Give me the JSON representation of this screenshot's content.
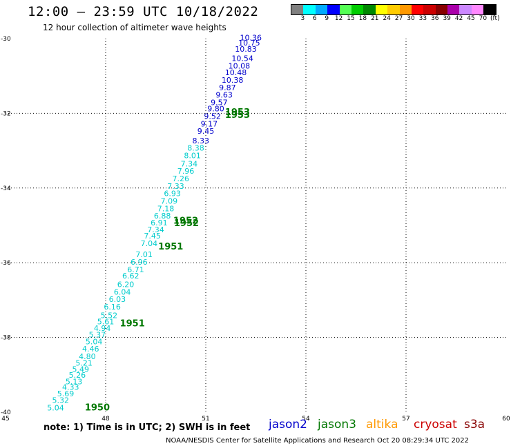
{
  "header": {
    "title": "12:00 – 23:59 UTC 10/18/2022",
    "subtitle": "12 hour collection of altimeter wave heights"
  },
  "colorbar": {
    "colors": [
      "#808080",
      "#00ffff",
      "#00aaff",
      "#0000ff",
      "#55ff55",
      "#00cc00",
      "#008800",
      "#ffff00",
      "#ffcc00",
      "#ff9900",
      "#ff0000",
      "#cc0000",
      "#880000",
      "#aa00aa",
      "#cc88ff",
      "#ff88ff",
      "#000000"
    ],
    "labels": [
      "3",
      "6",
      "9",
      "12",
      "15",
      "18",
      "21",
      "24",
      "27",
      "30",
      "33",
      "36",
      "39",
      "42",
      "45",
      "70",
      "(ft)"
    ]
  },
  "note": "note:  1) Time is in UTC;  2) SWH is in feet",
  "credit": "NOAA/NESDIS Center for Satellite Applications and Research     Oct 20 08:29:34 UTC 2022",
  "satellites": [
    {
      "name": "jason2",
      "color": "#0000cc"
    },
    {
      "name": "jason3",
      "color": "#007700"
    },
    {
      "name": "altika",
      "color": "#ff9900"
    },
    {
      "name": "cryosat",
      "color": "#cc0000"
    },
    {
      "name": "s3a",
      "color": "#880000"
    }
  ],
  "chart_data": {
    "type": "scatter",
    "title": "12:00 – 23:59 UTC 10/18/2022",
    "xlim": [
      45,
      60
    ],
    "ylim": [
      -40,
      -30
    ],
    "x_ticks": [
      "45",
      "48",
      "51",
      "54",
      "57",
      "60"
    ],
    "y_ticks": [
      "-30",
      "-32",
      "-34",
      "-36",
      "-38",
      "-40"
    ],
    "grid": true,
    "swh_points": [
      {
        "lon": 46.5,
        "lat": -39.95,
        "swh": "5.04",
        "color": "#00cccc"
      },
      {
        "lon": 46.65,
        "lat": -39.75,
        "swh": "5.32",
        "color": "#00cccc"
      },
      {
        "lon": 46.8,
        "lat": -39.58,
        "swh": "5.69",
        "color": "#00cccc"
      },
      {
        "lon": 46.95,
        "lat": -39.4,
        "swh": "4.33",
        "color": "#00cccc"
      },
      {
        "lon": 47.05,
        "lat": -39.25,
        "swh": "5.13",
        "color": "#00cccc"
      },
      {
        "lon": 47.15,
        "lat": -39.08,
        "swh": "5.26",
        "color": "#00cccc"
      },
      {
        "lon": 47.25,
        "lat": -38.92,
        "swh": "5.49",
        "color": "#00cccc"
      },
      {
        "lon": 47.35,
        "lat": -38.75,
        "swh": "5.21",
        "color": "#00cccc"
      },
      {
        "lon": 47.45,
        "lat": -38.58,
        "swh": "4.80",
        "color": "#00cccc"
      },
      {
        "lon": 47.55,
        "lat": -38.38,
        "swh": "4.46",
        "color": "#00cccc"
      },
      {
        "lon": 47.65,
        "lat": -38.18,
        "swh": "5.04",
        "color": "#00cccc"
      },
      {
        "lon": 47.75,
        "lat": -38.0,
        "swh": "5.37",
        "color": "#00cccc"
      },
      {
        "lon": 47.9,
        "lat": -37.82,
        "swh": "4.94",
        "color": "#00cccc"
      },
      {
        "lon": 48.0,
        "lat": -37.65,
        "swh": "5.61",
        "color": "#00cccc"
      },
      {
        "lon": 48.1,
        "lat": -37.48,
        "swh": "5.52",
        "color": "#00cccc"
      },
      {
        "lon": 48.2,
        "lat": -37.25,
        "swh": "6.16",
        "color": "#00cccc"
      },
      {
        "lon": 48.35,
        "lat": -37.05,
        "swh": "6.03",
        "color": "#00cccc"
      },
      {
        "lon": 48.5,
        "lat": -36.85,
        "swh": "6.04",
        "color": "#00cccc"
      },
      {
        "lon": 48.6,
        "lat": -36.65,
        "swh": "6.20",
        "color": "#00cccc"
      },
      {
        "lon": 48.75,
        "lat": -36.42,
        "swh": "6.62",
        "color": "#00cccc"
      },
      {
        "lon": 48.9,
        "lat": -36.25,
        "swh": "6.71",
        "color": "#00cccc"
      },
      {
        "lon": 49.0,
        "lat": -36.05,
        "swh": "6.96",
        "color": "#00cccc"
      },
      {
        "lon": 49.15,
        "lat": -35.85,
        "swh": "7.01",
        "color": "#00cccc"
      },
      {
        "lon": 49.3,
        "lat": -35.55,
        "swh": "7.04",
        "color": "#00cccc"
      },
      {
        "lon": 49.4,
        "lat": -35.35,
        "swh": "7.45",
        "color": "#00cccc"
      },
      {
        "lon": 49.5,
        "lat": -35.18,
        "swh": "7.34",
        "color": "#00cccc"
      },
      {
        "lon": 49.6,
        "lat": -35.0,
        "swh": "6.91",
        "color": "#00cccc"
      },
      {
        "lon": 49.7,
        "lat": -34.82,
        "swh": "6.88",
        "color": "#00cccc"
      },
      {
        "lon": 49.8,
        "lat": -34.62,
        "swh": "7.18",
        "color": "#00cccc"
      },
      {
        "lon": 49.9,
        "lat": -34.42,
        "swh": "7.09",
        "color": "#00cccc"
      },
      {
        "lon": 50.0,
        "lat": -34.22,
        "swh": "6.93",
        "color": "#00cccc"
      },
      {
        "lon": 50.1,
        "lat": -34.02,
        "swh": "7.33",
        "color": "#00cccc"
      },
      {
        "lon": 50.25,
        "lat": -33.82,
        "swh": "7.26",
        "color": "#00cccc"
      },
      {
        "lon": 50.4,
        "lat": -33.62,
        "swh": "7.96",
        "color": "#00cccc"
      },
      {
        "lon": 50.5,
        "lat": -33.42,
        "swh": "7.34",
        "color": "#00cccc"
      },
      {
        "lon": 50.6,
        "lat": -33.2,
        "swh": "8.01",
        "color": "#00cccc"
      },
      {
        "lon": 50.7,
        "lat": -33.0,
        "swh": "8.38",
        "color": "#00cccc"
      },
      {
        "lon": 50.85,
        "lat": -32.8,
        "swh": "8.33",
        "color": "#0000cc"
      },
      {
        "lon": 51.0,
        "lat": -32.55,
        "swh": "9.45",
        "color": "#0000cc"
      },
      {
        "lon": 51.1,
        "lat": -32.35,
        "swh": "9.17",
        "color": "#0000cc"
      },
      {
        "lon": 51.2,
        "lat": -32.15,
        "swh": "9.52",
        "color": "#0000cc"
      },
      {
        "lon": 51.3,
        "lat": -31.95,
        "swh": "9.80",
        "color": "#0000cc"
      },
      {
        "lon": 51.4,
        "lat": -31.78,
        "swh": "9.57",
        "color": "#0000cc"
      },
      {
        "lon": 51.55,
        "lat": -31.58,
        "swh": "9.63",
        "color": "#0000cc"
      },
      {
        "lon": 51.65,
        "lat": -31.38,
        "swh": "9.87",
        "color": "#0000cc"
      },
      {
        "lon": 51.8,
        "lat": -31.18,
        "swh": "10.38",
        "color": "#0000cc"
      },
      {
        "lon": 51.9,
        "lat": -30.98,
        "swh": "10.48",
        "color": "#0000cc"
      },
      {
        "lon": 52.0,
        "lat": -30.8,
        "swh": "10.08",
        "color": "#0000cc"
      },
      {
        "lon": 52.1,
        "lat": -30.6,
        "swh": "10.54",
        "color": "#0000cc"
      },
      {
        "lon": 52.2,
        "lat": -30.35,
        "swh": "10.83",
        "color": "#0000cc"
      },
      {
        "lon": 52.3,
        "lat": -30.18,
        "swh": "10.75",
        "color": "#0000cc"
      },
      {
        "lon": 52.35,
        "lat": -30.05,
        "swh": "10.36",
        "color": "#0000cc"
      }
    ],
    "time_labels": [
      {
        "lon": 47.75,
        "lat": -39.95,
        "text": "1950"
      },
      {
        "lon": 48.8,
        "lat": -37.7,
        "text": "1951"
      },
      {
        "lon": 49.95,
        "lat": -35.65,
        "text": "1951"
      },
      {
        "lon": 50.4,
        "lat": -34.95,
        "text": "1952"
      },
      {
        "lon": 50.42,
        "lat": -35.02,
        "text": "1952"
      },
      {
        "lon": 51.95,
        "lat": -32.05,
        "text": "1953"
      },
      {
        "lon": 51.95,
        "lat": -32.12,
        "text": "1953"
      }
    ]
  }
}
